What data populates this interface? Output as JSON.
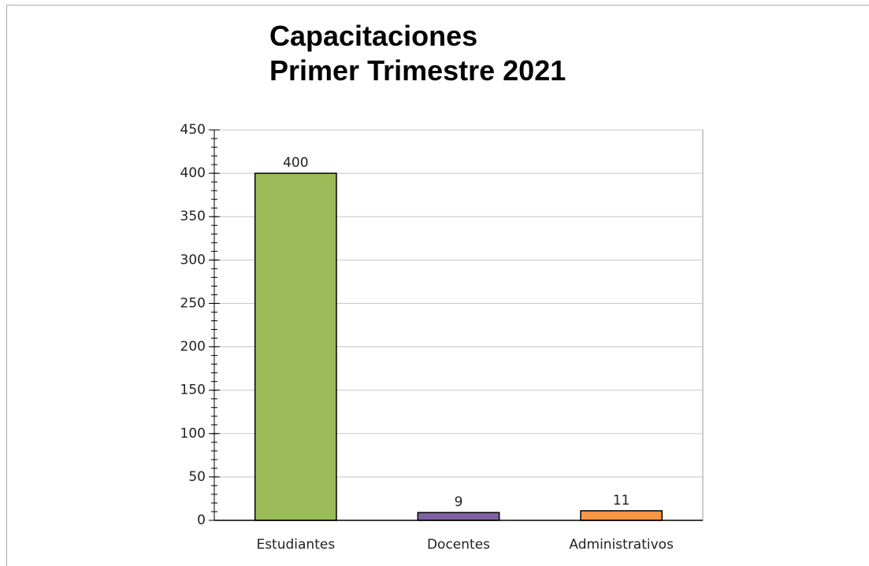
{
  "chart_data": {
    "type": "bar",
    "title": [
      "Capacitaciones",
      "Primer Trimestre 2021"
    ],
    "categories": [
      "Estudiantes",
      "Docentes",
      "Administrativos"
    ],
    "values": [
      400,
      9,
      11
    ],
    "colors": [
      "#9bbb59",
      "#8064a2",
      "#f79646"
    ],
    "ylim": [
      0,
      450
    ],
    "yticks": [
      0,
      50,
      100,
      150,
      200,
      250,
      300,
      350,
      400,
      450
    ],
    "yminor_step": 10,
    "grid": true
  }
}
